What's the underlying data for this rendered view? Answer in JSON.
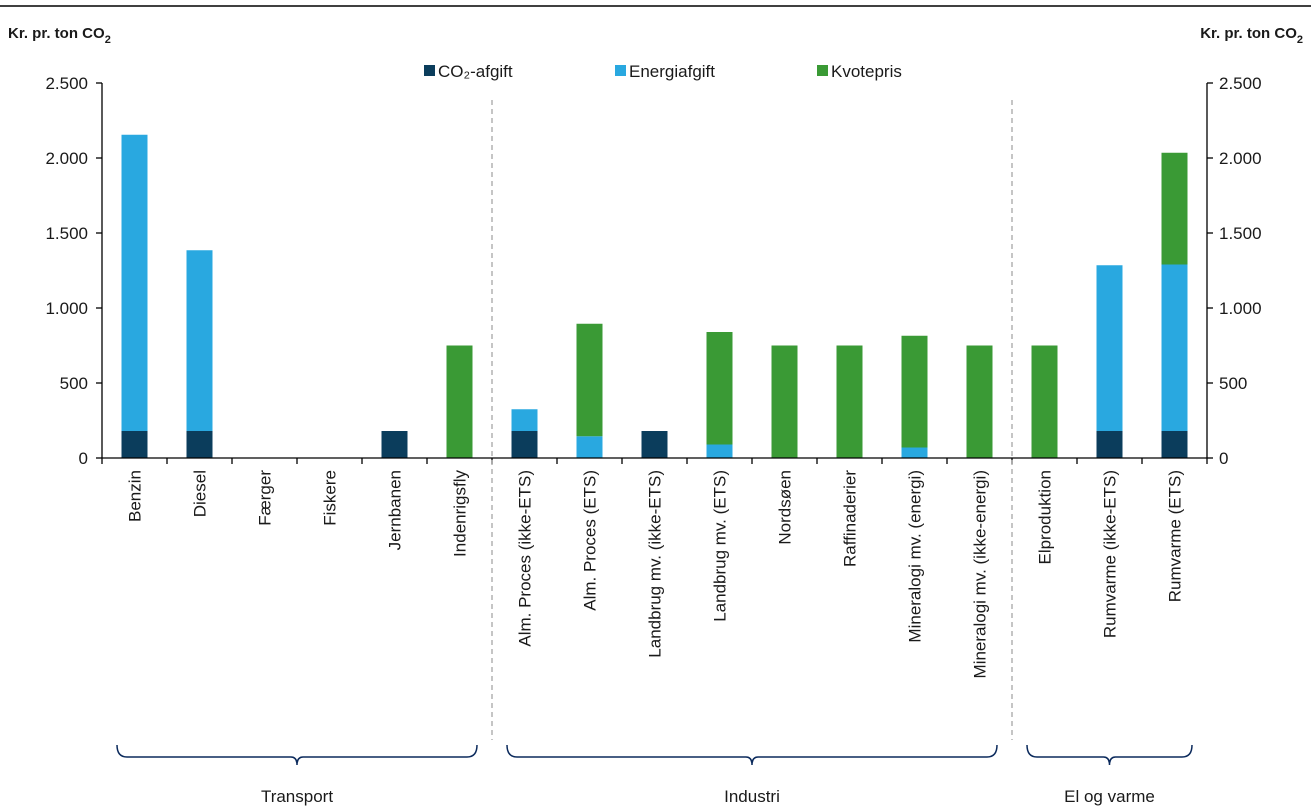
{
  "chart_data": {
    "type": "bar",
    "stacked": true,
    "y_axis_title_left": "Kr. pr.  ton CO",
    "y_axis_title_right": "Kr. pr. ton CO",
    "y_axis_title_subscript": "2",
    "ylim": [
      0,
      2500
    ],
    "yticks": [
      0,
      500,
      1000,
      1500,
      2000,
      2500
    ],
    "ytick_labels": [
      "0",
      "500",
      "1.000",
      "1.500",
      "2.000",
      "2.500"
    ],
    "categories": [
      "Benzin",
      "Diesel",
      "Færger",
      "Fiskere",
      "Jernbanen",
      "Indenrigsfly",
      "Alm. Proces (ikke-ETS)",
      "Alm. Proces (ETS)",
      "Landbrug mv. (ikke-ETS)",
      "Landbrug mv. (ETS)",
      "Nordsøen",
      "Raffinaderier",
      "Mineralogi mv. (energi)",
      "Mineralogi mv. (ikke-energi)",
      "Elproduktion",
      "Rumvarme (ikke-ETS)",
      "Rumvarme (ETS)"
    ],
    "series": [
      {
        "name": "CO₂-afgift",
        "color": "#0b3d5c",
        "values": [
          180,
          180,
          0,
          0,
          180,
          0,
          180,
          0,
          180,
          0,
          0,
          0,
          0,
          0,
          0,
          180,
          180
        ]
      },
      {
        "name": "Energiafgift",
        "color": "#29a8e0",
        "values": [
          1975,
          1205,
          0,
          0,
          0,
          0,
          145,
          145,
          0,
          90,
          0,
          0,
          70,
          0,
          0,
          1105,
          1110
        ]
      },
      {
        "name": "Kvotepris",
        "color": "#3a9a35",
        "values": [
          0,
          0,
          0,
          0,
          0,
          750,
          0,
          750,
          0,
          750,
          750,
          750,
          745,
          750,
          750,
          0,
          745
        ]
      }
    ],
    "groups": [
      {
        "label": "Transport",
        "start": 0,
        "end": 5
      },
      {
        "label": "Industri",
        "start": 6,
        "end": 13
      },
      {
        "label": "El og varme",
        "start": 14,
        "end": 16
      }
    ],
    "legend_position": "top-center",
    "grid": false
  }
}
